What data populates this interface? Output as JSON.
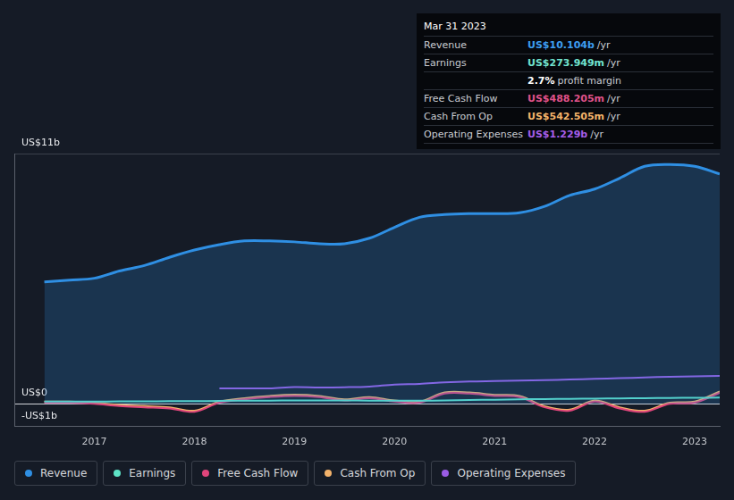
{
  "chart_data": {
    "type": "line",
    "x": [
      2016.5,
      2016.75,
      2017.0,
      2017.25,
      2017.5,
      2017.75,
      2018.0,
      2018.25,
      2018.5,
      2018.75,
      2019.0,
      2019.25,
      2019.5,
      2019.75,
      2020.0,
      2020.25,
      2020.5,
      2020.75,
      2021.0,
      2021.25,
      2021.5,
      2021.75,
      2022.0,
      2022.25,
      2022.5,
      2022.75,
      2023.0,
      2023.25
    ],
    "xlim": [
      2016.2,
      2023.25
    ],
    "xticks": [
      2017,
      2018,
      2019,
      2020,
      2021,
      2022,
      2023
    ],
    "ylim": [
      -1,
      11
    ],
    "yticks": [
      {
        "value": -1,
        "label": "-US$1b"
      },
      {
        "value": 0,
        "label": "US$0"
      },
      {
        "value": 11,
        "label": "US$11b"
      }
    ],
    "grid": true,
    "legend": "bottom",
    "series": [
      {
        "name": "Revenue",
        "color": "#2f8fe3",
        "type": "area",
        "values": [
          5.36,
          5.44,
          5.52,
          5.84,
          6.08,
          6.44,
          6.76,
          7.0,
          7.16,
          7.16,
          7.12,
          7.04,
          7.04,
          7.28,
          7.76,
          8.2,
          8.32,
          8.36,
          8.36,
          8.4,
          8.68,
          9.16,
          9.44,
          9.92,
          10.44,
          10.52,
          10.44,
          10.104
        ]
      },
      {
        "name": "Earnings",
        "color": "#5ee3c6",
        "type": "line",
        "values": [
          0.1,
          0.1,
          0.1,
          0.11,
          0.11,
          0.12,
          0.12,
          0.13,
          0.14,
          0.14,
          0.15,
          0.15,
          0.15,
          0.14,
          0.14,
          0.14,
          0.15,
          0.17,
          0.18,
          0.2,
          0.21,
          0.22,
          0.23,
          0.24,
          0.25,
          0.26,
          0.27,
          0.274
        ]
      },
      {
        "name": "Free Cash Flow",
        "color": "#e0457b",
        "type": "line",
        "values": [
          0.05,
          0.05,
          0.0,
          -0.1,
          -0.15,
          -0.2,
          -0.35,
          0.05,
          0.2,
          0.3,
          0.35,
          0.3,
          0.15,
          0.25,
          0.1,
          0.05,
          0.45,
          0.45,
          0.35,
          0.3,
          -0.15,
          -0.3,
          0.1,
          -0.2,
          -0.35,
          0.0,
          0.05,
          0.488
        ]
      },
      {
        "name": "Cash From Op",
        "color": "#f2b26b",
        "type": "line",
        "values": [
          0.1,
          0.1,
          0.05,
          -0.05,
          -0.1,
          -0.15,
          -0.3,
          0.1,
          0.25,
          0.35,
          0.4,
          0.35,
          0.2,
          0.3,
          0.15,
          0.1,
          0.5,
          0.5,
          0.4,
          0.35,
          -0.1,
          -0.25,
          0.15,
          -0.15,
          -0.3,
          0.05,
          0.1,
          0.5425
        ]
      },
      {
        "name": "Operating Expenses",
        "color": "#9b5de5",
        "type": "line",
        "values": [
          null,
          null,
          null,
          null,
          null,
          null,
          null,
          0.68,
          0.68,
          0.68,
          0.74,
          0.72,
          0.73,
          0.76,
          0.85,
          0.88,
          0.94,
          0.98,
          1.0,
          1.02,
          1.04,
          1.07,
          1.1,
          1.13,
          1.16,
          1.19,
          1.21,
          1.229
        ]
      }
    ],
    "annotations": {
      "date": "Mar 31 2023",
      "rows": [
        {
          "label": "Revenue",
          "value": "US$10.104b",
          "unit": "/yr",
          "color": "#3d9df0"
        },
        {
          "label": "Earnings",
          "value": "US$273.949m",
          "unit": "/yr",
          "color": "#71e3cf"
        },
        {
          "label": "",
          "value": "2.7%",
          "unit": "profit margin",
          "color": "#ffffff"
        },
        {
          "label": "Free Cash Flow",
          "value": "US$488.205m",
          "unit": "/yr",
          "color": "#e0528a"
        },
        {
          "label": "Cash From Op",
          "value": "US$542.505m",
          "unit": "/yr",
          "color": "#f5b46a"
        },
        {
          "label": "Operating Expenses",
          "value": "US$1.229b",
          "unit": "/yr",
          "color": "#a55de8"
        }
      ]
    }
  }
}
